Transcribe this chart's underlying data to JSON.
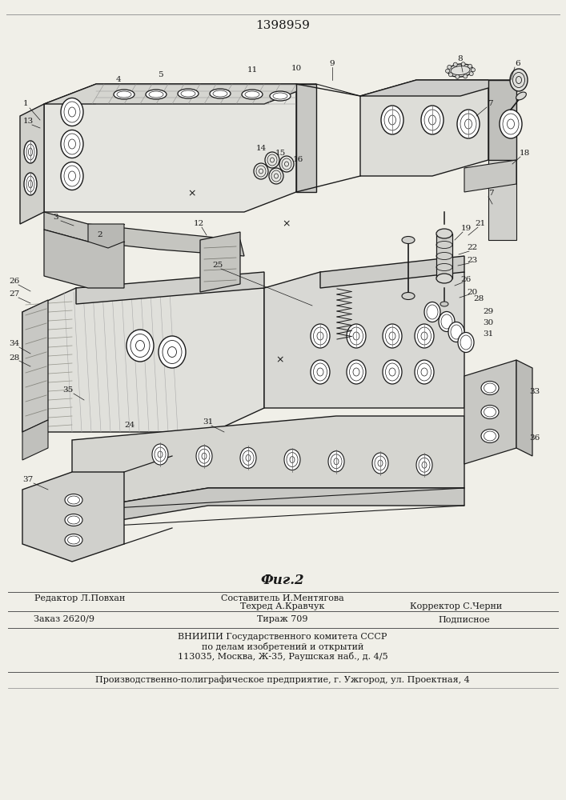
{
  "title": "1398959",
  "fig_label": "Фиг.2",
  "background_color": "#f0efe8",
  "line_color": "#1a1a1a",
  "text_color": "#1a1a1a",
  "vniipi_text": [
    "ВНИИПИ Государственного комитета СССР",
    "по делам изобретений и открытий",
    "113035, Москва, Ж-35, Раушская наб., д. 4/5"
  ],
  "factory_text": "Производственно-полиграфическое предприятие, г. Ужгород, ул. Проектная, 4",
  "title_fontsize": 11,
  "footer_fontsize": 8.0,
  "fig_fontsize": 12
}
